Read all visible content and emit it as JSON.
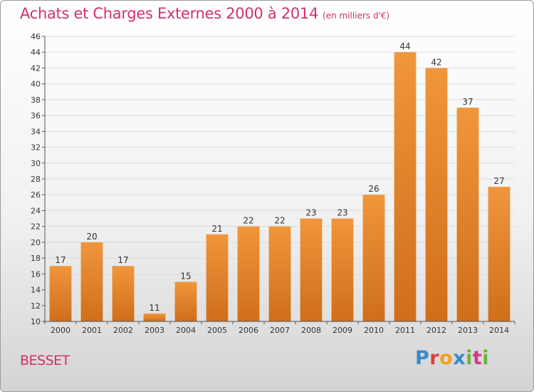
{
  "chart_data": {
    "type": "bar",
    "title": "Achats et Charges Externes 2000 à 2014",
    "subtitle": "(en milliers d'€)",
    "categories": [
      "2000",
      "2001",
      "2002",
      "2003",
      "2004",
      "2005",
      "2006",
      "2007",
      "2008",
      "2009",
      "2010",
      "2011",
      "2012",
      "2013",
      "2014"
    ],
    "values": [
      17,
      20,
      17,
      11,
      15,
      21,
      22,
      22,
      23,
      23,
      26,
      44,
      42,
      37,
      27
    ],
    "ylim": [
      10,
      46
    ],
    "yticks": [
      10,
      12,
      14,
      16,
      18,
      20,
      22,
      24,
      26,
      28,
      30,
      32,
      34,
      36,
      38,
      40,
      42,
      44,
      46
    ],
    "grid": true,
    "bar_color": "#f0963c",
    "bar_color_dark": "#d06e1a",
    "xlabel": "",
    "ylabel": ""
  },
  "footer": {
    "commune": "BESSET",
    "logo_letters": [
      "P",
      "r",
      "o",
      "x",
      "i",
      "t",
      "i"
    ]
  }
}
